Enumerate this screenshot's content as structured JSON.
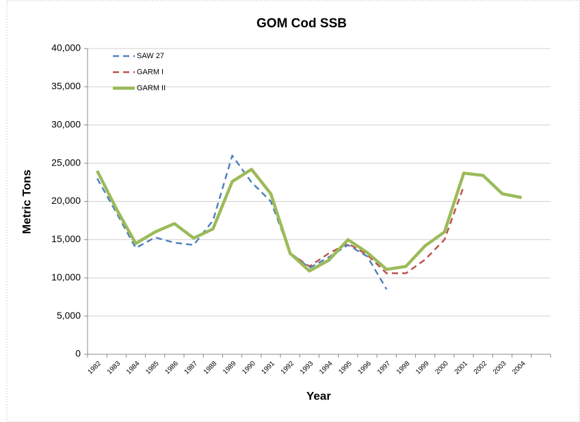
{
  "chart_data": {
    "type": "line",
    "title": "GOM Cod SSB",
    "x_label": "Year",
    "y_label": "Metric Tons",
    "categories": [
      "1982",
      "1983",
      "1984",
      "1985",
      "1986",
      "1987",
      "1988",
      "1989",
      "1990",
      "1991",
      "1992",
      "1993",
      "1994",
      "1995",
      "1996",
      "1997",
      "1998",
      "1999",
      "2000",
      "2001",
      "2002",
      "2003",
      "2004",
      null
    ],
    "series": [
      {
        "name": "SAW 27",
        "color": "#4f81bd",
        "dash": true,
        "values": [
          23000,
          18500,
          13900,
          15300,
          14600,
          14300,
          17500,
          26000,
          22500,
          20000,
          13300,
          11300,
          12700,
          14300,
          12800,
          8500,
          null,
          null,
          null,
          null,
          null,
          null,
          null,
          null
        ]
      },
      {
        "name": "GARM I",
        "color": "#c0504d",
        "dash": true,
        "values": [
          24000,
          19000,
          14500,
          16000,
          17100,
          15200,
          16400,
          22600,
          24200,
          21000,
          13200,
          11500,
          13200,
          14500,
          13000,
          10600,
          10600,
          12400,
          15000,
          22000,
          null,
          null,
          null,
          null
        ]
      },
      {
        "name": "GARM II",
        "color": "#9bbb59",
        "dash": false,
        "values": [
          24000,
          19000,
          14500,
          16000,
          17100,
          15200,
          16400,
          22600,
          24200,
          21000,
          13200,
          10900,
          12300,
          15000,
          13300,
          11100,
          11500,
          14200,
          16000,
          23700,
          23400,
          21000,
          20500,
          null
        ]
      }
    ],
    "ylim": [
      0,
      40000
    ],
    "yticks": [
      0,
      {
        "value": 5000,
        "label": "5,000"
      },
      {
        "value": 10000,
        "label": "10,000"
      },
      {
        "value": 15000,
        "label": "15,000"
      },
      {
        "value": 20000,
        "label": "20,000"
      },
      {
        "value": 25000,
        "label": "25,000"
      },
      {
        "value": 30000,
        "label": "30,000"
      },
      {
        "value": 35000,
        "label": "35,000"
      },
      {
        "value": 40000,
        "label": "40,000"
      }
    ],
    "grid": true,
    "legend": "top-left"
  }
}
